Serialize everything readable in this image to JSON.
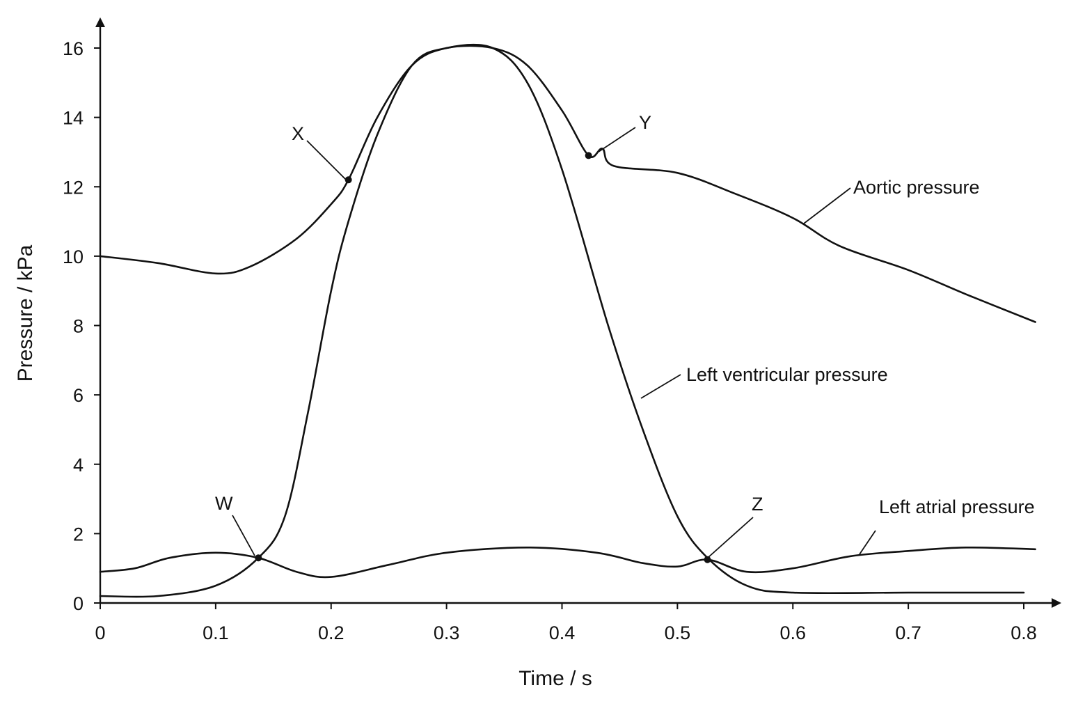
{
  "chart_data": {
    "type": "line",
    "xlabel": "Time / s",
    "ylabel": "Pressure / kPa",
    "xlim": [
      0,
      0.8
    ],
    "ylim": [
      0,
      16
    ],
    "x_ticks": [
      "0",
      "0.1",
      "0.2",
      "0.3",
      "0.4",
      "0.5",
      "0.6",
      "0.7",
      "0.8"
    ],
    "y_ticks": [
      "0",
      "2",
      "4",
      "6",
      "8",
      "10",
      "12",
      "14",
      "16"
    ],
    "grid": false,
    "legend": "none",
    "series": [
      {
        "name": "Aortic pressure",
        "color": "#111111",
        "points": [
          [
            0,
            10.0
          ],
          [
            0.05,
            9.8
          ],
          [
            0.1,
            9.5
          ],
          [
            0.13,
            9.7
          ],
          [
            0.17,
            10.5
          ],
          [
            0.2,
            11.5
          ],
          [
            0.215,
            12.2
          ],
          [
            0.24,
            14.0
          ],
          [
            0.27,
            15.5
          ],
          [
            0.3,
            16.0
          ],
          [
            0.34,
            16.0
          ],
          [
            0.37,
            15.5
          ],
          [
            0.4,
            14.2
          ],
          [
            0.423,
            12.9
          ],
          [
            0.435,
            13.1
          ],
          [
            0.445,
            12.6
          ],
          [
            0.5,
            12.4
          ],
          [
            0.55,
            11.8
          ],
          [
            0.6,
            11.1
          ],
          [
            0.64,
            10.3
          ],
          [
            0.7,
            9.6
          ],
          [
            0.75,
            8.9
          ],
          [
            0.81,
            8.1
          ]
        ]
      },
      {
        "name": "Left ventricular pressure",
        "color": "#111111",
        "points": [
          [
            0,
            0.2
          ],
          [
            0.05,
            0.2
          ],
          [
            0.1,
            0.5
          ],
          [
            0.137,
            1.3
          ],
          [
            0.16,
            2.5
          ],
          [
            0.18,
            5.5
          ],
          [
            0.2,
            9.0
          ],
          [
            0.215,
            11.0
          ],
          [
            0.24,
            13.5
          ],
          [
            0.27,
            15.5
          ],
          [
            0.3,
            16.0
          ],
          [
            0.34,
            16.0
          ],
          [
            0.37,
            15.0
          ],
          [
            0.4,
            12.5
          ],
          [
            0.44,
            8.0
          ],
          [
            0.47,
            5.0
          ],
          [
            0.5,
            2.5
          ],
          [
            0.526,
            1.3
          ],
          [
            0.56,
            0.5
          ],
          [
            0.6,
            0.3
          ],
          [
            0.7,
            0.3
          ],
          [
            0.8,
            0.3
          ]
        ]
      },
      {
        "name": "Left atrial pressure",
        "color": "#111111",
        "points": [
          [
            0,
            0.9
          ],
          [
            0.03,
            1.0
          ],
          [
            0.06,
            1.3
          ],
          [
            0.1,
            1.45
          ],
          [
            0.137,
            1.3
          ],
          [
            0.17,
            0.9
          ],
          [
            0.2,
            0.75
          ],
          [
            0.25,
            1.1
          ],
          [
            0.3,
            1.45
          ],
          [
            0.37,
            1.6
          ],
          [
            0.43,
            1.45
          ],
          [
            0.47,
            1.15
          ],
          [
            0.5,
            1.05
          ],
          [
            0.526,
            1.25
          ],
          [
            0.56,
            0.9
          ],
          [
            0.6,
            1.0
          ],
          [
            0.65,
            1.35
          ],
          [
            0.7,
            1.5
          ],
          [
            0.75,
            1.6
          ],
          [
            0.81,
            1.55
          ]
        ]
      }
    ],
    "annotations": [
      {
        "label": "X",
        "x": 0.215,
        "y": 12.2
      },
      {
        "label": "Y",
        "x": 0.423,
        "y": 12.9
      },
      {
        "label": "W",
        "x": 0.137,
        "y": 1.3
      },
      {
        "label": "Z",
        "x": 0.526,
        "y": 1.25
      }
    ]
  }
}
